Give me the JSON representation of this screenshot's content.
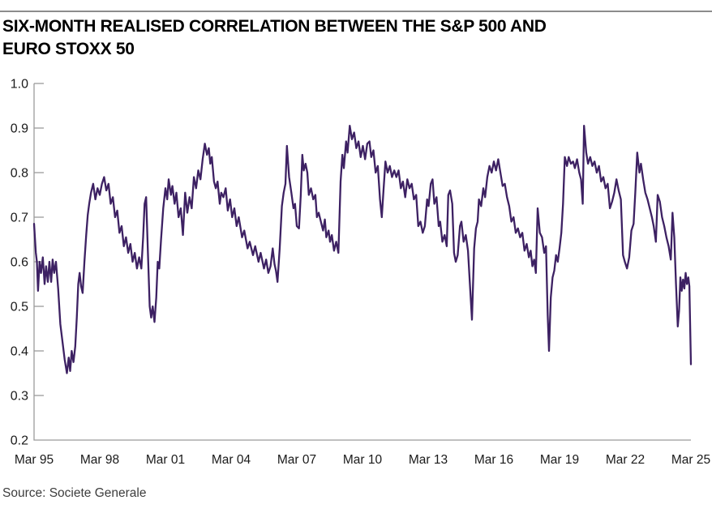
{
  "title_line1": "SIX-MONTH REALISED CORRELATION BETWEEN THE S&P 500 AND",
  "title_line2": "EURO STOXX 50",
  "source": "Source: Societe Generale",
  "colors": {
    "line": "#3d2163",
    "axis": "#9b9b9b",
    "rule": "#8c8c8c",
    "title": "#000000",
    "tick_label": "#1a1a1a",
    "source": "#3d3d3d",
    "background": "#ffffff"
  },
  "chart_data": {
    "type": "line",
    "title": "SIX-MONTH REALISED CORRELATION BETWEEN THE S&P 500 AND EURO STOXX 50",
    "series_name": "Six-month realised correlation",
    "xlabel": "",
    "ylabel": "",
    "xlim": [
      1995.2,
      2025.2
    ],
    "ylim": [
      0.2,
      1.0
    ],
    "grid": false,
    "legend": false,
    "x_ticks": [
      "Mar 95",
      "Mar 98",
      "Mar 01",
      "Mar 04",
      "Mar 07",
      "Mar 10",
      "Mar 13",
      "Mar 16",
      "Mar 19",
      "Mar 22",
      "Mar 25"
    ],
    "x_tick_years": [
      1995.2,
      1998.2,
      2001.2,
      2004.2,
      2007.2,
      2010.2,
      2013.2,
      2016.2,
      2019.2,
      2022.2,
      2025.2
    ],
    "y_ticks": [
      0.2,
      0.3,
      0.4,
      0.5,
      0.6,
      0.7,
      0.8,
      0.9,
      1.0
    ],
    "x": [
      1995.2,
      1995.28,
      1995.33,
      1995.38,
      1995.45,
      1995.52,
      1995.6,
      1995.68,
      1995.75,
      1995.83,
      1995.9,
      1995.98,
      1996.05,
      1996.12,
      1996.2,
      1996.3,
      1996.4,
      1996.5,
      1996.6,
      1996.7,
      1996.78,
      1996.85,
      1996.92,
      1997.0,
      1997.08,
      1997.15,
      1997.22,
      1997.28,
      1997.35,
      1997.42,
      1997.5,
      1997.58,
      1997.65,
      1997.72,
      1997.8,
      1997.9,
      1998.0,
      1998.1,
      1998.2,
      1998.3,
      1998.4,
      1998.5,
      1998.6,
      1998.7,
      1998.8,
      1998.9,
      1999.0,
      1999.1,
      1999.2,
      1999.3,
      1999.4,
      1999.5,
      1999.6,
      1999.7,
      1999.8,
      1999.9,
      2000.0,
      2000.1,
      2000.18,
      2000.25,
      2000.32,
      2000.4,
      2000.48,
      2000.55,
      2000.62,
      2000.7,
      2000.78,
      2000.85,
      2000.92,
      2001.0,
      2001.1,
      2001.2,
      2001.28,
      2001.35,
      2001.45,
      2001.52,
      2001.62,
      2001.7,
      2001.8,
      2001.9,
      2002.0,
      2002.1,
      2002.2,
      2002.3,
      2002.4,
      2002.5,
      2002.6,
      2002.7,
      2002.8,
      2002.9,
      2003.0,
      2003.1,
      2003.18,
      2003.25,
      2003.32,
      2003.42,
      2003.5,
      2003.58,
      2003.68,
      2003.75,
      2003.85,
      2003.95,
      2004.05,
      2004.15,
      2004.25,
      2004.35,
      2004.45,
      2004.55,
      2004.7,
      2004.8,
      2004.95,
      2005.05,
      2005.2,
      2005.3,
      2005.45,
      2005.55,
      2005.7,
      2005.8,
      2005.9,
      2006.0,
      2006.1,
      2006.18,
      2006.25,
      2006.32,
      2006.42,
      2006.52,
      2006.6,
      2006.68,
      2006.75,
      2006.85,
      2006.95,
      2007.05,
      2007.12,
      2007.2,
      2007.3,
      2007.38,
      2007.45,
      2007.52,
      2007.6,
      2007.68,
      2007.75,
      2007.85,
      2007.95,
      2008.05,
      2008.12,
      2008.2,
      2008.3,
      2008.4,
      2008.48,
      2008.55,
      2008.65,
      2008.72,
      2008.8,
      2008.9,
      2009.0,
      2009.1,
      2009.2,
      2009.28,
      2009.35,
      2009.45,
      2009.52,
      2009.62,
      2009.72,
      2009.82,
      2009.92,
      2010.02,
      2010.12,
      2010.22,
      2010.32,
      2010.42,
      2010.52,
      2010.6,
      2010.7,
      2010.8,
      2010.9,
      2011.0,
      2011.08,
      2011.16,
      2011.25,
      2011.35,
      2011.45,
      2011.55,
      2011.65,
      2011.75,
      2011.85,
      2011.95,
      2012.05,
      2012.15,
      2012.25,
      2012.35,
      2012.45,
      2012.55,
      2012.65,
      2012.75,
      2012.85,
      2012.95,
      2013.05,
      2013.15,
      2013.22,
      2013.32,
      2013.4,
      2013.48,
      2013.58,
      2013.68,
      2013.75,
      2013.85,
      2013.95,
      2014.05,
      2014.12,
      2014.2,
      2014.3,
      2014.38,
      2014.46,
      2014.55,
      2014.65,
      2014.72,
      2014.82,
      2014.92,
      2015.02,
      2015.1,
      2015.2,
      2015.3,
      2015.38,
      2015.46,
      2015.52,
      2015.62,
      2015.72,
      2015.8,
      2015.9,
      2016.0,
      2016.1,
      2016.2,
      2016.3,
      2016.4,
      2016.5,
      2016.6,
      2016.7,
      2016.8,
      2016.9,
      2017.0,
      2017.1,
      2017.2,
      2017.3,
      2017.4,
      2017.5,
      2017.6,
      2017.7,
      2017.8,
      2017.88,
      2017.96,
      2018.04,
      2018.12,
      2018.2,
      2018.3,
      2018.4,
      2018.5,
      2018.58,
      2018.66,
      2018.72,
      2018.8,
      2018.88,
      2018.96,
      2019.04,
      2019.12,
      2019.2,
      2019.28,
      2019.36,
      2019.44,
      2019.54,
      2019.62,
      2019.72,
      2019.82,
      2019.9,
      2020.0,
      2020.1,
      2020.18,
      2020.26,
      2020.32,
      2020.42,
      2020.5,
      2020.6,
      2020.7,
      2020.8,
      2020.9,
      2021.0,
      2021.1,
      2021.2,
      2021.3,
      2021.4,
      2021.5,
      2021.6,
      2021.7,
      2021.8,
      2021.9,
      2022.0,
      2022.1,
      2022.18,
      2022.28,
      2022.38,
      2022.48,
      2022.58,
      2022.66,
      2022.75,
      2022.85,
      2022.92,
      2023.02,
      2023.12,
      2023.22,
      2023.32,
      2023.42,
      2023.5,
      2023.6,
      2023.68,
      2023.78,
      2023.88,
      2023.98,
      2024.08,
      2024.18,
      2024.28,
      2024.36,
      2024.44,
      2024.52,
      2024.6,
      2024.66,
      2024.72,
      2024.78,
      2024.84,
      2024.9,
      2024.96,
      2025.02,
      2025.08,
      2025.13,
      2025.2
    ],
    "y": [
      0.685,
      0.62,
      0.6,
      0.535,
      0.6,
      0.575,
      0.61,
      0.55,
      0.59,
      0.555,
      0.6,
      0.555,
      0.605,
      0.575,
      0.6,
      0.54,
      0.46,
      0.42,
      0.38,
      0.35,
      0.385,
      0.355,
      0.4,
      0.375,
      0.41,
      0.475,
      0.55,
      0.575,
      0.545,
      0.53,
      0.6,
      0.66,
      0.705,
      0.73,
      0.755,
      0.775,
      0.74,
      0.765,
      0.75,
      0.775,
      0.79,
      0.76,
      0.775,
      0.73,
      0.745,
      0.7,
      0.715,
      0.665,
      0.68,
      0.635,
      0.655,
      0.62,
      0.64,
      0.6,
      0.62,
      0.585,
      0.61,
      0.585,
      0.655,
      0.73,
      0.745,
      0.62,
      0.5,
      0.475,
      0.5,
      0.465,
      0.52,
      0.6,
      0.585,
      0.65,
      0.72,
      0.765,
      0.74,
      0.785,
      0.75,
      0.77,
      0.73,
      0.755,
      0.7,
      0.72,
      0.66,
      0.755,
      0.71,
      0.745,
      0.72,
      0.79,
      0.765,
      0.805,
      0.785,
      0.83,
      0.865,
      0.84,
      0.855,
      0.82,
      0.835,
      0.78,
      0.765,
      0.78,
      0.73,
      0.755,
      0.745,
      0.765,
      0.715,
      0.74,
      0.7,
      0.72,
      0.68,
      0.7,
      0.655,
      0.67,
      0.63,
      0.645,
      0.615,
      0.635,
      0.6,
      0.62,
      0.585,
      0.605,
      0.575,
      0.59,
      0.63,
      0.595,
      0.58,
      0.555,
      0.63,
      0.725,
      0.755,
      0.775,
      0.86,
      0.79,
      0.755,
      0.72,
      0.73,
      0.68,
      0.675,
      0.75,
      0.84,
      0.805,
      0.82,
      0.8,
      0.75,
      0.765,
      0.74,
      0.75,
      0.7,
      0.71,
      0.69,
      0.67,
      0.695,
      0.655,
      0.67,
      0.645,
      0.66,
      0.625,
      0.645,
      0.62,
      0.78,
      0.84,
      0.81,
      0.87,
      0.845,
      0.905,
      0.875,
      0.89,
      0.855,
      0.87,
      0.835,
      0.86,
      0.83,
      0.865,
      0.87,
      0.835,
      0.85,
      0.8,
      0.815,
      0.74,
      0.7,
      0.76,
      0.825,
      0.8,
      0.815,
      0.79,
      0.805,
      0.79,
      0.805,
      0.765,
      0.78,
      0.745,
      0.785,
      0.765,
      0.775,
      0.74,
      0.75,
      0.68,
      0.69,
      0.665,
      0.68,
      0.74,
      0.725,
      0.775,
      0.785,
      0.73,
      0.745,
      0.68,
      0.69,
      0.645,
      0.66,
      0.635,
      0.75,
      0.76,
      0.73,
      0.62,
      0.6,
      0.615,
      0.68,
      0.69,
      0.645,
      0.66,
      0.625,
      0.555,
      0.47,
      0.63,
      0.675,
      0.69,
      0.74,
      0.725,
      0.765,
      0.745,
      0.79,
      0.815,
      0.8,
      0.825,
      0.805,
      0.83,
      0.8,
      0.77,
      0.775,
      0.745,
      0.725,
      0.69,
      0.7,
      0.665,
      0.675,
      0.655,
      0.665,
      0.625,
      0.64,
      0.61,
      0.625,
      0.59,
      0.605,
      0.575,
      0.72,
      0.665,
      0.655,
      0.62,
      0.635,
      0.48,
      0.4,
      0.52,
      0.565,
      0.58,
      0.615,
      0.6,
      0.63,
      0.665,
      0.73,
      0.835,
      0.815,
      0.835,
      0.82,
      0.825,
      0.81,
      0.83,
      0.8,
      0.785,
      0.73,
      0.905,
      0.845,
      0.82,
      0.835,
      0.815,
      0.825,
      0.8,
      0.815,
      0.78,
      0.79,
      0.765,
      0.775,
      0.72,
      0.735,
      0.755,
      0.785,
      0.76,
      0.74,
      0.615,
      0.6,
      0.585,
      0.61,
      0.67,
      0.685,
      0.755,
      0.845,
      0.8,
      0.82,
      0.785,
      0.755,
      0.74,
      0.72,
      0.7,
      0.68,
      0.645,
      0.75,
      0.735,
      0.7,
      0.68,
      0.655,
      0.635,
      0.605,
      0.71,
      0.655,
      0.55,
      0.455,
      0.49,
      0.565,
      0.535,
      0.56,
      0.54,
      0.575,
      0.55,
      0.565,
      0.545,
      0.37
    ]
  }
}
